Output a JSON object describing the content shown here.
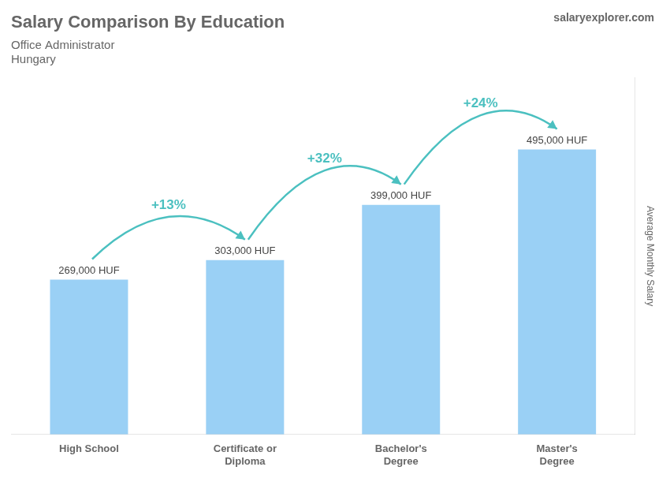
{
  "chart_data": {
    "type": "bar",
    "title": "Salary Comparison By Education",
    "subtitle": "Office Administrator",
    "country": "Hungary",
    "brand": "salaryexplorer.com",
    "ylabel": "Average Monthly Salary",
    "categories": [
      "High School",
      "Certificate or\nDiploma",
      "Bachelor's\nDegree",
      "Master's\nDegree"
    ],
    "values": [
      269000,
      303000,
      399000,
      495000
    ],
    "value_labels": [
      "269,000 HUF",
      "303,000 HUF",
      "399,000 HUF",
      "495,000 HUF"
    ],
    "data_labels": true,
    "annotations": [
      "+13%",
      "+32%",
      "+24%"
    ],
    "ylim": [
      0,
      620000
    ],
    "grid": false,
    "tick_labels": "x"
  }
}
